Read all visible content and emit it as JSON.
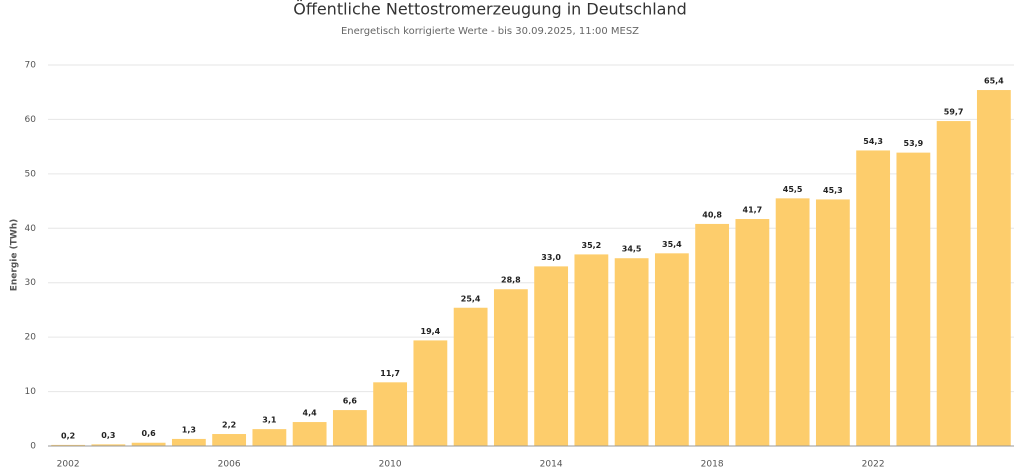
{
  "chart_data": {
    "type": "bar",
    "title": "Öffentliche Nettostromerzeugung in Deutschland",
    "subtitle": "Energetisch korrigierte Werte - bis 30.09.2025, 11:00 MESZ",
    "y_label": "Energie (TWh)",
    "categories": [
      "2002",
      null,
      null,
      null,
      "2006",
      null,
      null,
      null,
      "2010",
      null,
      null,
      null,
      "2014",
      null,
      null,
      null,
      "2018",
      null,
      null,
      null,
      "2022",
      null,
      null,
      null
    ],
    "values": [
      0.2,
      0.3,
      0.6,
      1.3,
      2.2,
      3.1,
      4.4,
      6.6,
      11.7,
      19.4,
      25.4,
      28.8,
      33.0,
      35.2,
      34.5,
      35.4,
      40.8,
      41.7,
      45.5,
      45.3,
      54.3,
      53.9,
      59.7,
      65.4
    ],
    "value_labels": [
      "0,2",
      "0,3",
      "0,6",
      "1,3",
      "2,2",
      "3,1",
      "4,4",
      "6,6",
      "11,7",
      "19,4",
      "25,4",
      "28,8",
      "33,0",
      "35,2",
      "34,5",
      "35,4",
      "40,8",
      "41,7",
      "45,5",
      "45,3",
      "54,3",
      "53,9",
      "59,7",
      "65,4"
    ],
    "color": "#fdcd6c",
    "ylim": [
      0,
      70
    ],
    "yticks": [
      0,
      10,
      20,
      30,
      40,
      50,
      60,
      70
    ],
    "grid": true
  }
}
